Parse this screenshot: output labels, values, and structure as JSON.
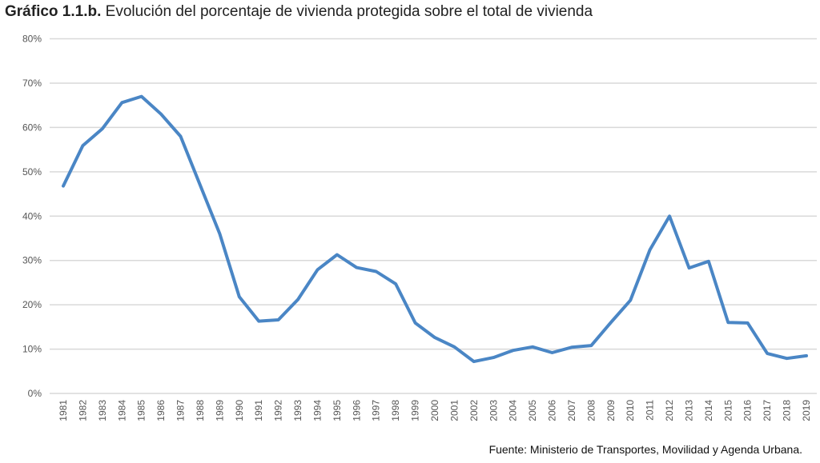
{
  "title": {
    "label": "Gráfico 1.1.b.",
    "text": "Evolución del porcentaje de vivienda protegida sobre el total de vivienda"
  },
  "source": "Fuente: Ministerio de Transportes, Movilidad y Agenda Urbana.",
  "chart_data": {
    "type": "line",
    "title": "Gráfico 1.1.b. Evolución del porcentaje de vivienda protegida sobre el total de vivienda",
    "xlabel": "",
    "ylabel": "",
    "ylim": [
      0,
      80
    ],
    "yticks": [
      "0%",
      "10%",
      "20%",
      "30%",
      "40%",
      "50%",
      "60%",
      "70%",
      "80%"
    ],
    "grid": "horizontal",
    "color": "#4a86c5",
    "categories": [
      "1981",
      "1982",
      "1983",
      "1984",
      "1985",
      "1986",
      "1987",
      "1988",
      "1989",
      "1990",
      "1991",
      "1992",
      "1993",
      "1994",
      "1995",
      "1996",
      "1997",
      "1998",
      "1999",
      "2000",
      "2001",
      "2002",
      "2003",
      "2004",
      "2005",
      "2006",
      "2007",
      "2008",
      "2009",
      "2010",
      "2011",
      "2012",
      "2013",
      "2014",
      "2015",
      "2016",
      "2017",
      "2018",
      "2019"
    ],
    "values": [
      46.8,
      55.9,
      59.7,
      65.6,
      67.0,
      63.0,
      58.0,
      47.0,
      36.0,
      21.8,
      16.3,
      16.6,
      21.2,
      27.9,
      31.3,
      28.4,
      27.5,
      24.7,
      15.9,
      12.6,
      10.5,
      7.2,
      8.1,
      9.7,
      10.5,
      9.2,
      10.4,
      10.8,
      16.0,
      21.0,
      32.4,
      40.0,
      28.3,
      29.8,
      16.0,
      15.9,
      9.0,
      7.9,
      8.5
    ]
  }
}
